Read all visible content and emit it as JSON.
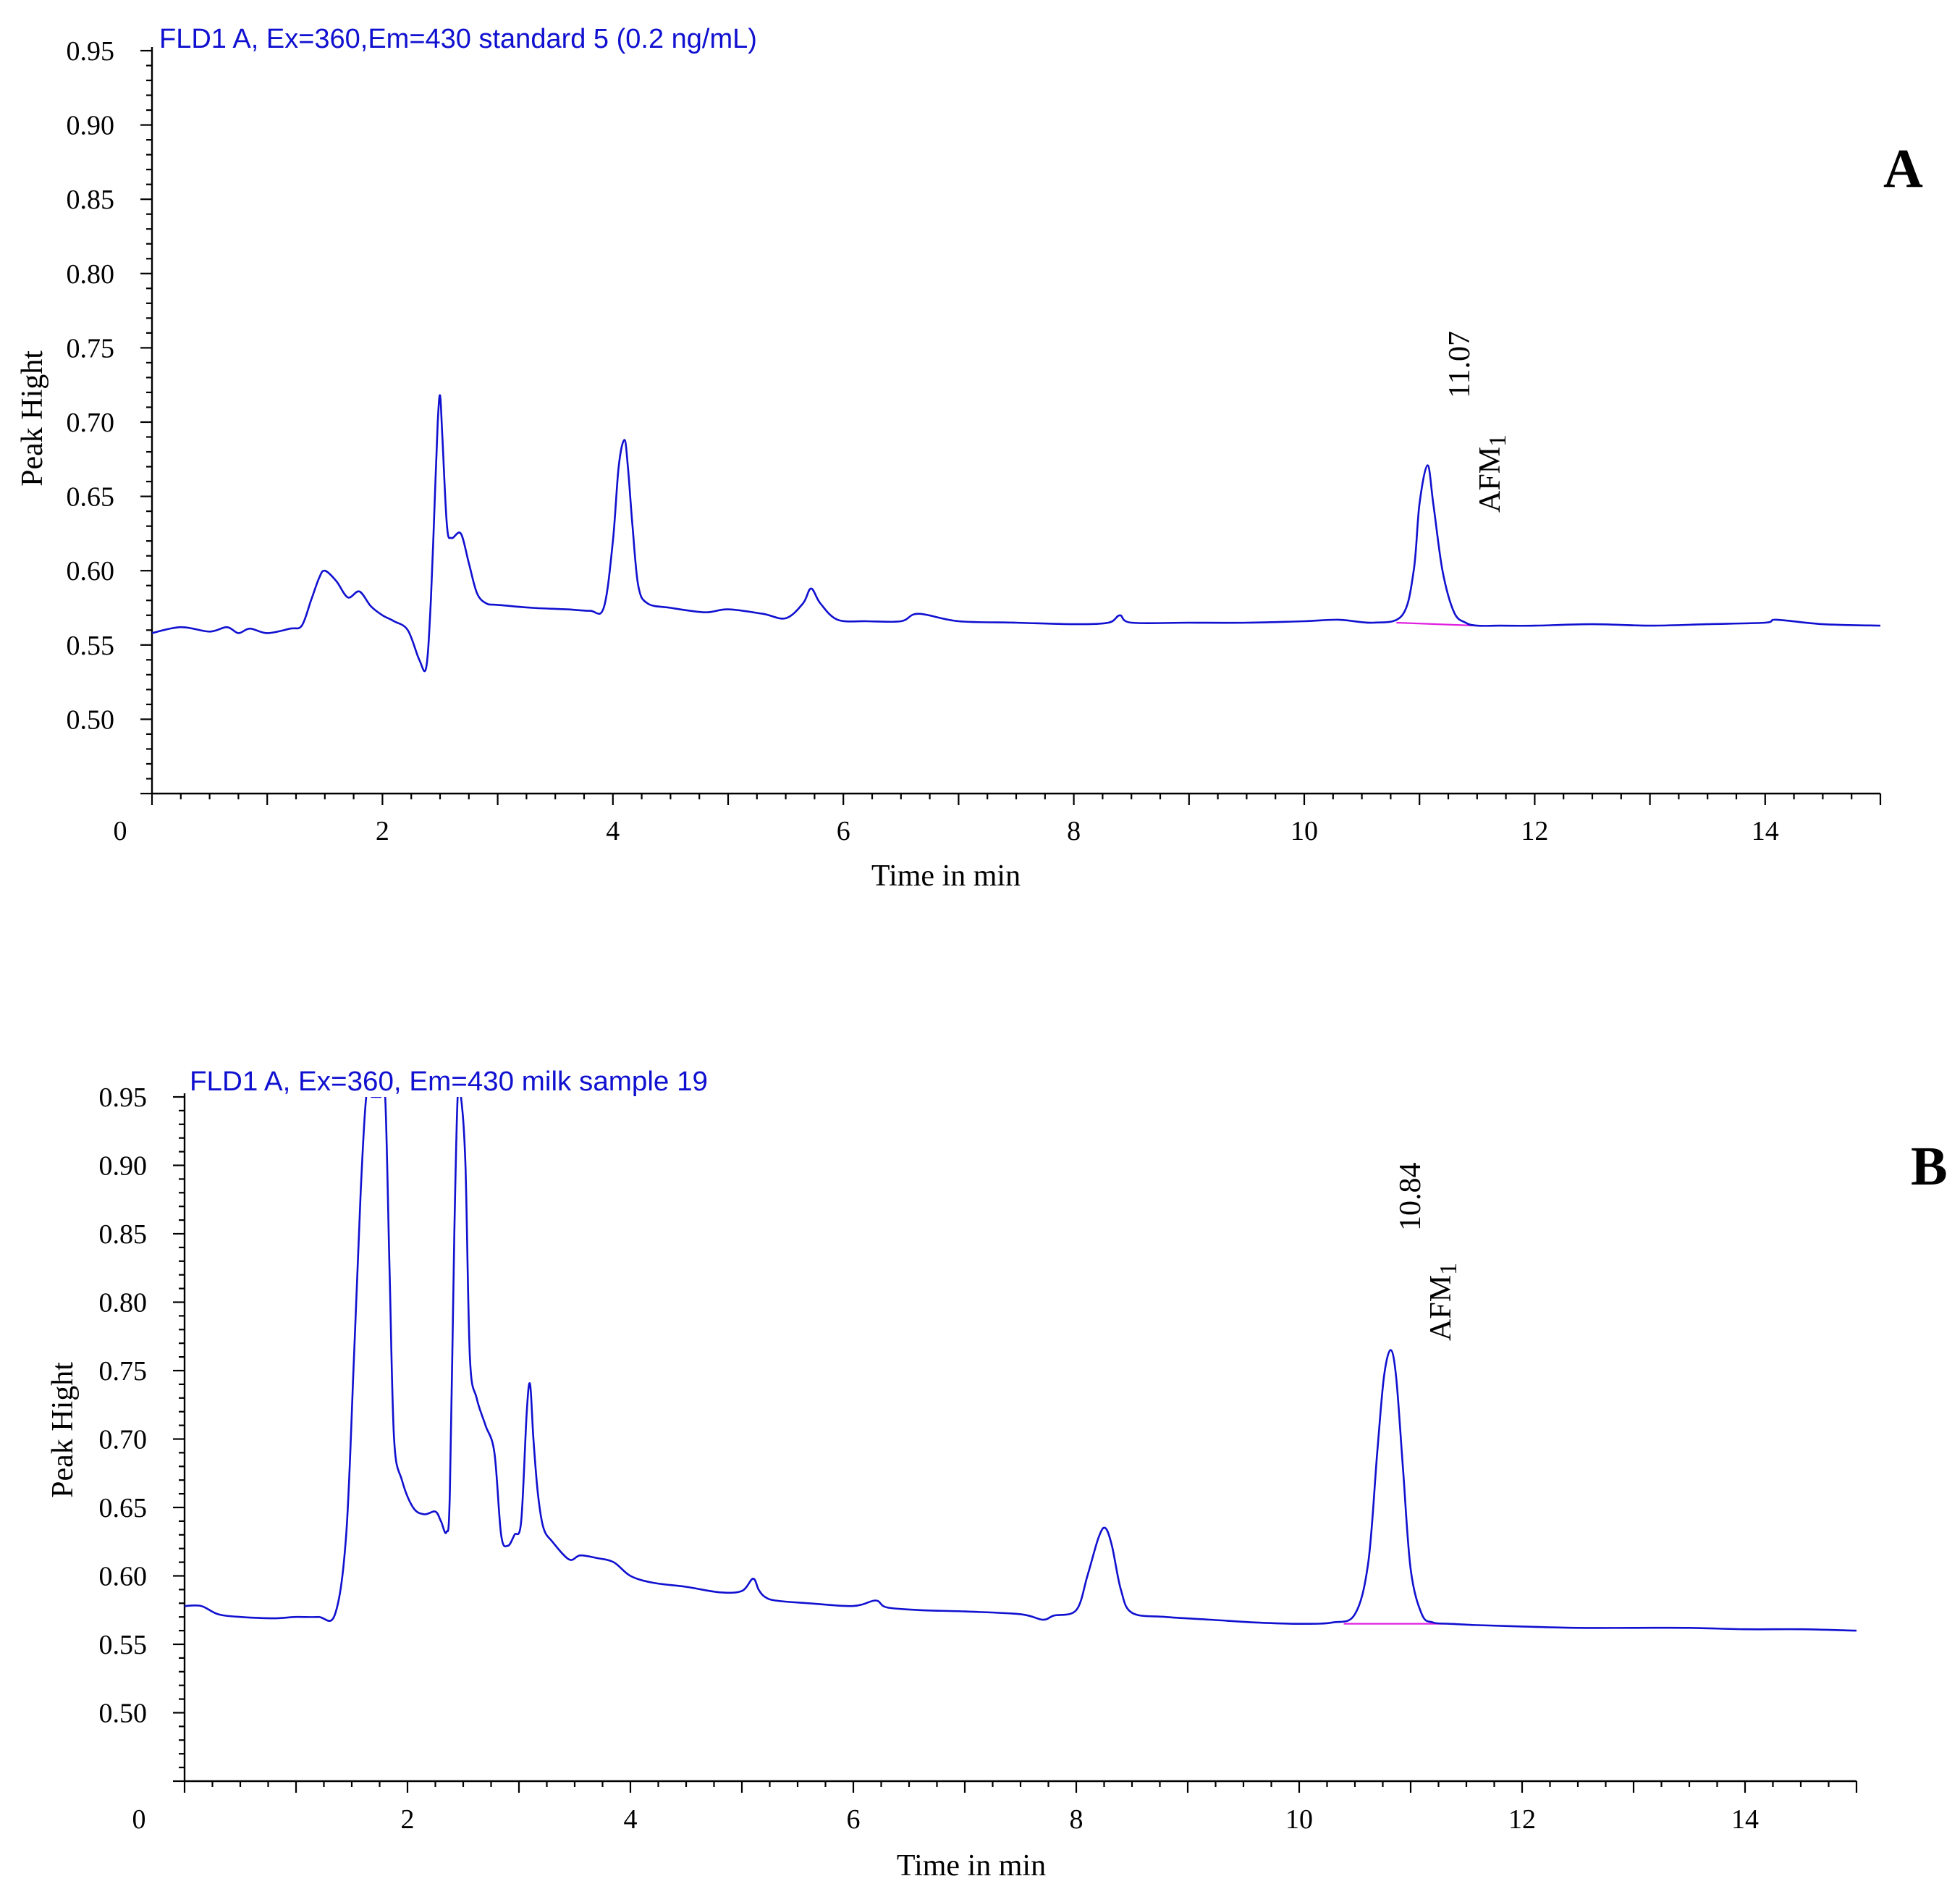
{
  "chart_data": [
    {
      "type": "line",
      "panel_label": "A",
      "title": "FLD1 A, Ex=360,Em=430 standard 5 (0.2 ng/mL)",
      "xlabel": "Time in min",
      "ylabel": "Peak Hight",
      "xlim": [
        0,
        15
      ],
      "ylim": [
        0.45,
        0.95
      ],
      "x_tick_values": [
        0,
        2,
        4,
        6,
        8,
        10,
        12,
        14
      ],
      "x_tick_labels": [
        "0",
        "2",
        "4",
        "6",
        "8",
        "10",
        "12",
        "14"
      ],
      "y_tick_values": [
        0.5,
        0.55,
        0.6,
        0.65,
        0.7,
        0.75,
        0.8,
        0.85,
        0.9,
        0.95
      ],
      "y_tick_labels": [
        "0.50",
        "0.55",
        "0.60",
        "0.65",
        "0.70",
        "0.75",
        "0.80",
        "0.85",
        "0.90",
        "0.95"
      ],
      "colors": {
        "trace": "#1010d0",
        "baseline": "#e020e0",
        "title": "#1010d0"
      },
      "series": [
        {
          "x": [
            0,
            0.25,
            0.5,
            0.65,
            0.75,
            0.85,
            1.0,
            1.2,
            1.3,
            1.38,
            1.45,
            1.5,
            1.6,
            1.7,
            1.8,
            1.9,
            2.0,
            2.1,
            2.22,
            2.32,
            2.38,
            2.42,
            2.46,
            2.48,
            2.5,
            2.52,
            2.56,
            2.6,
            2.68,
            2.75,
            2.82,
            2.9,
            3.0,
            3.3,
            3.6,
            3.8,
            3.92,
            4.0,
            4.05,
            4.1,
            4.13,
            4.17,
            4.22,
            4.3,
            4.5,
            4.8,
            5.0,
            5.3,
            5.5,
            5.65,
            5.72,
            5.8,
            5.95,
            6.2,
            6.5,
            6.65,
            7.0,
            7.5,
            8.0,
            8.3,
            8.4,
            8.5,
            9.0,
            9.5,
            10.0,
            10.3,
            10.6,
            10.85,
            10.95,
            11.0,
            11.07,
            11.12,
            11.2,
            11.3,
            11.4,
            11.5,
            11.7,
            12.0,
            12.5,
            13.0,
            13.5,
            14.0,
            14.1,
            14.5,
            15.0
          ],
          "y": [
            0.558,
            0.562,
            0.559,
            0.562,
            0.558,
            0.561,
            0.558,
            0.561,
            0.563,
            0.58,
            0.595,
            0.6,
            0.593,
            0.582,
            0.586,
            0.576,
            0.57,
            0.566,
            0.56,
            0.54,
            0.535,
            0.58,
            0.66,
            0.7,
            0.718,
            0.69,
            0.63,
            0.622,
            0.625,
            0.605,
            0.585,
            0.578,
            0.577,
            0.575,
            0.574,
            0.573,
            0.575,
            0.62,
            0.67,
            0.688,
            0.67,
            0.63,
            0.59,
            0.578,
            0.575,
            0.572,
            0.574,
            0.571,
            0.568,
            0.578,
            0.588,
            0.578,
            0.567,
            0.566,
            0.566,
            0.571,
            0.566,
            0.565,
            0.564,
            0.565,
            0.57,
            0.565,
            0.565,
            0.565,
            0.566,
            0.567,
            0.565,
            0.57,
            0.6,
            0.645,
            0.671,
            0.645,
            0.6,
            0.572,
            0.565,
            0.563,
            0.563,
            0.563,
            0.564,
            0.563,
            0.564,
            0.565,
            0.567,
            0.564,
            0.563
          ]
        }
      ],
      "annotations": [
        {
          "peak": "AFM1",
          "retention_time": "11.07",
          "compound": "AFM",
          "subscript": "1",
          "baseline_from": [
            10.8,
            0.565
          ],
          "baseline_to": [
            11.5,
            0.563
          ]
        }
      ]
    },
    {
      "type": "line",
      "panel_label": "B",
      "title": "FLD1 A, Ex=360, Em=430 milk sample 19",
      "xlabel": "Time in min",
      "ylabel": "Peak Hight",
      "xlim": [
        0,
        15
      ],
      "ylim": [
        0.45,
        0.95
      ],
      "x_tick_values": [
        0,
        2,
        4,
        6,
        8,
        10,
        12,
        14
      ],
      "x_tick_labels": [
        "0",
        "2",
        "4",
        "6",
        "8",
        "10",
        "12",
        "14"
      ],
      "y_tick_values": [
        0.5,
        0.55,
        0.6,
        0.65,
        0.7,
        0.75,
        0.8,
        0.85,
        0.9,
        0.95
      ],
      "y_tick_labels": [
        "0.50",
        "0.55",
        "0.60",
        "0.65",
        "0.70",
        "0.75",
        "0.80",
        "0.85",
        "0.90",
        "0.95"
      ],
      "colors": {
        "trace": "#1010d0",
        "baseline": "#e020e0",
        "title": "#1010d0"
      },
      "series": [
        {
          "x": [
            0,
            0.15,
            0.3,
            0.5,
            0.8,
            1.0,
            1.2,
            1.35,
            1.45,
            1.52,
            1.58,
            1.63,
            1.68,
            1.72,
            1.76,
            1.8,
            1.84,
            1.88,
            1.95,
            2.05,
            2.15,
            2.25,
            2.3,
            2.35,
            2.38,
            2.42,
            2.45,
            2.48,
            2.52,
            2.56,
            2.62,
            2.7,
            2.78,
            2.84,
            2.9,
            2.96,
            3.02,
            3.07,
            3.1,
            3.13,
            3.17,
            3.22,
            3.3,
            3.45,
            3.55,
            3.7,
            3.85,
            4.0,
            4.2,
            4.5,
            4.8,
            5.0,
            5.1,
            5.15,
            5.2,
            5.3,
            5.6,
            6.0,
            6.2,
            6.3,
            6.6,
            7.0,
            7.5,
            7.7,
            7.8,
            8.0,
            8.1,
            8.2,
            8.26,
            8.32,
            8.4,
            8.5,
            8.8,
            9.2,
            9.6,
            10.0,
            10.3,
            10.5,
            10.62,
            10.7,
            10.76,
            10.82,
            10.87,
            10.93,
            11.0,
            11.1,
            11.2,
            11.35,
            11.6,
            12.0,
            12.5,
            13.0,
            13.5,
            14.0,
            14.5,
            15.0
          ],
          "y": [
            0.578,
            0.578,
            0.572,
            0.57,
            0.569,
            0.57,
            0.57,
            0.572,
            0.63,
            0.76,
            0.88,
            0.95,
            0.95,
            0.95,
            0.95,
            0.95,
            0.82,
            0.7,
            0.67,
            0.65,
            0.645,
            0.647,
            0.64,
            0.632,
            0.66,
            0.85,
            0.95,
            0.95,
            0.9,
            0.76,
            0.73,
            0.71,
            0.69,
            0.63,
            0.622,
            0.63,
            0.64,
            0.72,
            0.74,
            0.7,
            0.66,
            0.635,
            0.625,
            0.612,
            0.615,
            0.613,
            0.61,
            0.6,
            0.595,
            0.592,
            0.588,
            0.589,
            0.598,
            0.59,
            0.585,
            0.582,
            0.58,
            0.578,
            0.582,
            0.577,
            0.575,
            0.574,
            0.572,
            0.568,
            0.571,
            0.575,
            0.6,
            0.628,
            0.635,
            0.622,
            0.59,
            0.573,
            0.57,
            0.568,
            0.566,
            0.565,
            0.566,
            0.572,
            0.61,
            0.69,
            0.745,
            0.765,
            0.745,
            0.68,
            0.605,
            0.572,
            0.566,
            0.565,
            0.564,
            0.563,
            0.562,
            0.562,
            0.562,
            0.561,
            0.561,
            0.56
          ]
        }
      ],
      "annotations": [
        {
          "peak": "AFM1",
          "retention_time": "10.84",
          "compound": "AFM",
          "subscript": "1",
          "baseline_from": [
            10.4,
            0.565
          ],
          "baseline_to": [
            11.4,
            0.565
          ]
        }
      ]
    }
  ]
}
